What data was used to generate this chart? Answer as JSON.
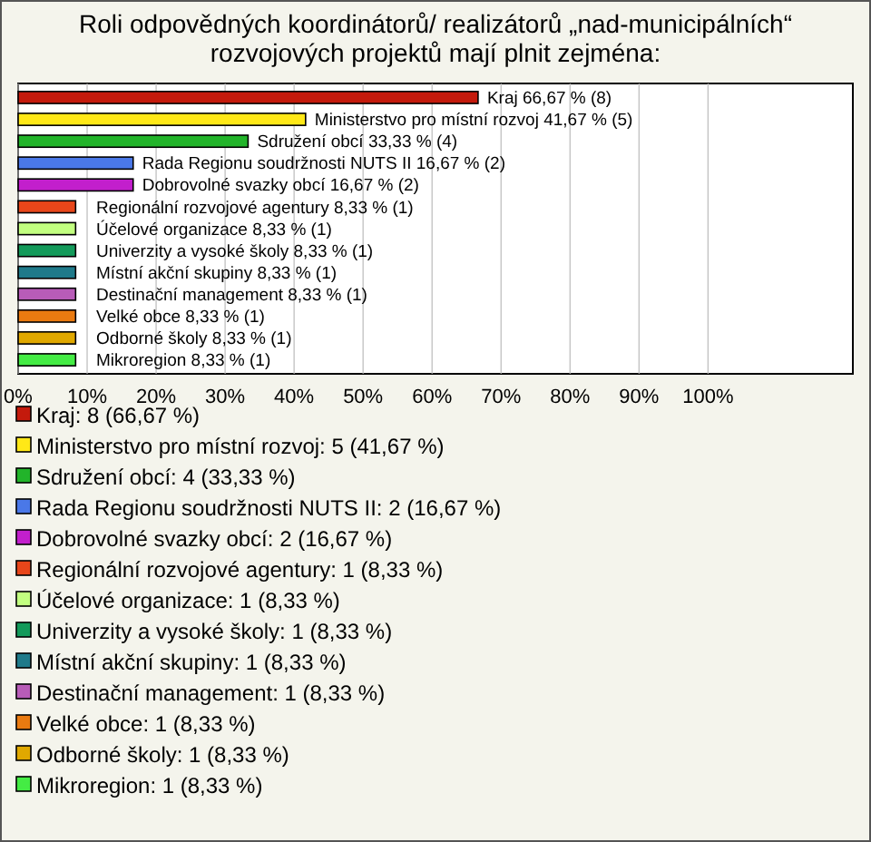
{
  "chart_data": {
    "type": "bar",
    "orientation": "horizontal",
    "title": "Roli odpovědných koordinátorů/ realizátorů „nad-municipálních“ rozvojových projektů mají plnit zejména:",
    "categories": [
      null,
      null,
      null,
      null,
      null,
      null,
      null,
      null,
      null,
      null,
      null,
      null,
      null
    ],
    "values": [
      66.67,
      41.67,
      33.33,
      16.67,
      16.67,
      8.33,
      8.33,
      8.33,
      8.33,
      8.33,
      8.33,
      8.33,
      8.33
    ],
    "colors": [
      "#c41a0c",
      "#ffe817",
      "#22b42a",
      "#4a78e8",
      "#c21fcc",
      "#e8461a",
      "#c2ff80",
      "#139a5a",
      "#1f7a8a",
      "#b85cb8",
      "#ea7a10",
      "#e0a800",
      "#44ec44"
    ],
    "value_labels": [
      "Kraj 66,67 % (8)",
      "Ministerstvo pro místní rozvoj 41,67 % (5)",
      "Sdružení obcí 33,33 % (4)",
      "Rada Regionu soudržnosti NUTS II 16,67 % (2)",
      "Dobrovolné svazky obcí 16,67 % (2)",
      "Regionální rozvojové agentury 8,33 % (1)",
      "Účelové organizace 8,33 % (1)",
      "Univerzity a vysoké školy 8,33 % (1)",
      "Místní akční skupiny 8,33 % (1)",
      "Destinační management 8,33 % (1)",
      "Velké obce 8,33 % (1)",
      "Odborné školy 8,33 % (1)",
      "Mikroregion 8,33 % (1)"
    ],
    "annotations": [
      "Kraj: 8 (66,67 %)",
      "Ministerstvo pro místní rozvoj: 5 (41,67 %)",
      "Sdružení obcí: 4 (33,33 %)",
      "Rada Regionu soudržnosti NUTS II: 2 (16,67 %)",
      "Dobrovolné svazky obcí: 2 (16,67 %)",
      "Regionální rozvojové agentury: 1 (8,33 %)",
      "Účelové organizace: 1 (8,33 %)",
      "Univerzity a vysoké školy: 1 (8,33 %)",
      "Místní akční skupiny: 1 (8,33 %)",
      "Destinační management: 1 (8,33 %)",
      "Velké obce: 1 (8,33 %)",
      "Odborné školy: 1 (8,33 %)",
      "Mikroregion: 1 (8,33 %)"
    ],
    "xlim": [
      0,
      121
    ],
    "xticks": [
      {
        "value": 0,
        "label": "0%"
      },
      {
        "value": 10,
        "label": "10%"
      },
      {
        "value": 20,
        "label": "20%"
      },
      {
        "value": 30,
        "label": "30%"
      },
      {
        "value": 40,
        "label": "40%"
      },
      {
        "value": 50,
        "label": "50%"
      },
      {
        "value": 60,
        "label": "60%"
      },
      {
        "value": 70,
        "label": "70%"
      },
      {
        "value": 80,
        "label": "80%"
      },
      {
        "value": 90,
        "label": "90%"
      },
      {
        "value": 100,
        "label": "100%"
      }
    ],
    "grid": "x",
    "tick_labels": "x"
  }
}
